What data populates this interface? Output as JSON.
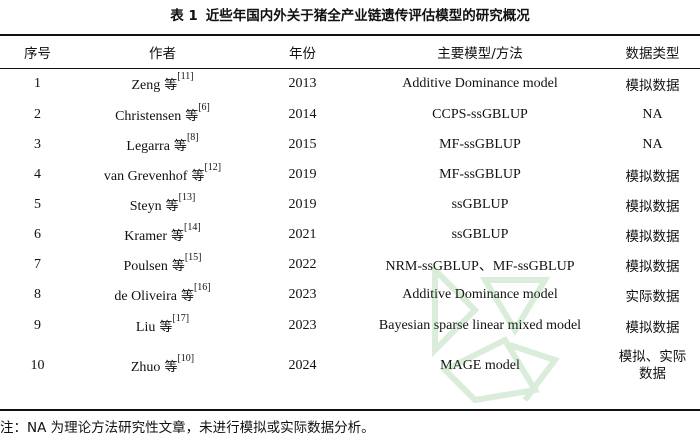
{
  "caption": {
    "label": "表 1",
    "text": "近些年国内外关于猪全产业链遗传评估模型的研究概况"
  },
  "headers": [
    "序号",
    "作者",
    "年份",
    "主要模型/方法",
    "数据类型"
  ],
  "deng": "等",
  "rows": [
    {
      "no": "1",
      "author": "Zeng",
      "ref": "[11]",
      "year": "2013",
      "method": "Additive Dominance model",
      "type": "模拟数据"
    },
    {
      "no": "2",
      "author": "Christensen",
      "ref": "[6]",
      "year": "2014",
      "method": "CCPS-ssGBLUP",
      "type": "NA"
    },
    {
      "no": "3",
      "author": "Legarra",
      "ref": "[8]",
      "year": "2015",
      "method": "MF-ssGBLUP",
      "type": "NA"
    },
    {
      "no": "4",
      "author": "van Grevenhof",
      "ref": "[12]",
      "year": "2019",
      "method": "MF-ssGBLUP",
      "type": "模拟数据"
    },
    {
      "no": "5",
      "author": "Steyn",
      "ref": "[13]",
      "year": "2019",
      "method": "ssGBLUP",
      "type": "模拟数据"
    },
    {
      "no": "6",
      "author": "Kramer",
      "ref": "[14]",
      "year": "2021",
      "method": "ssGBLUP",
      "type": "模拟数据"
    },
    {
      "no": "7",
      "author": "Poulsen",
      "ref": "[15]",
      "year": "2022",
      "method": "NRM-ssGBLUP、MF-ssGBLUP",
      "type": "模拟数据"
    },
    {
      "no": "8",
      "author": "de Oliveira",
      "ref": "[16]",
      "year": "2023",
      "method": "Additive Dominance model",
      "type": "实际数据"
    },
    {
      "no": "9",
      "author": "Liu",
      "ref": "[17]",
      "year": "2023",
      "method": "Bayesian sparse linear mixed model",
      "type": "模拟数据"
    },
    {
      "no": "10",
      "author": "Zhuo",
      "ref": "[10]",
      "year": "2024",
      "method": "MAGE model",
      "type": "模拟、实际数据"
    }
  ],
  "note": "注：NA 为理论方法研究性文章，未进行模拟或实际数据分析。"
}
